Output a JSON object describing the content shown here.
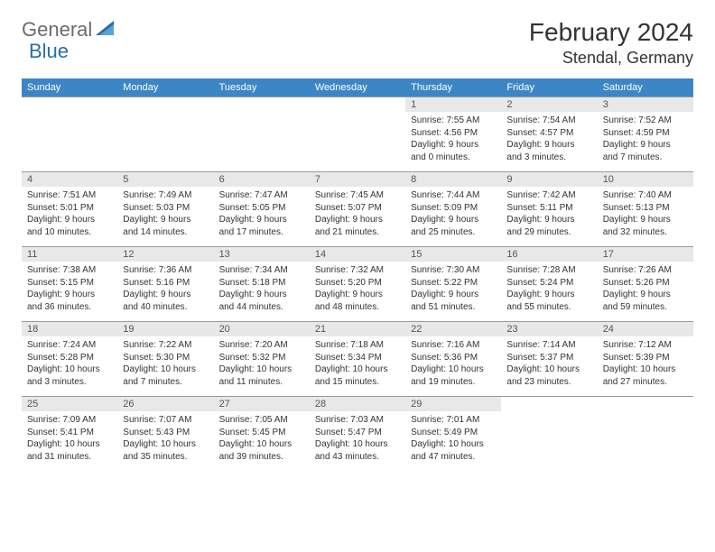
{
  "logo": {
    "text_general": "General",
    "text_blue": "Blue",
    "icon_color": "#2a6ca8"
  },
  "header": {
    "month_title": "February 2024",
    "location": "Stendal, Germany"
  },
  "colors": {
    "header_bg": "#3d86c6",
    "header_fg": "#ffffff",
    "daynum_bg": "#e8e8e8",
    "border": "#9a9a9a"
  },
  "day_names": [
    "Sunday",
    "Monday",
    "Tuesday",
    "Wednesday",
    "Thursday",
    "Friday",
    "Saturday"
  ],
  "weeks": [
    [
      null,
      null,
      null,
      null,
      {
        "n": "1",
        "sunrise": "7:55 AM",
        "sunset": "4:56 PM",
        "day_h": "9",
        "day_m": "0"
      },
      {
        "n": "2",
        "sunrise": "7:54 AM",
        "sunset": "4:57 PM",
        "day_h": "9",
        "day_m": "3"
      },
      {
        "n": "3",
        "sunrise": "7:52 AM",
        "sunset": "4:59 PM",
        "day_h": "9",
        "day_m": "7"
      }
    ],
    [
      {
        "n": "4",
        "sunrise": "7:51 AM",
        "sunset": "5:01 PM",
        "day_h": "9",
        "day_m": "10"
      },
      {
        "n": "5",
        "sunrise": "7:49 AM",
        "sunset": "5:03 PM",
        "day_h": "9",
        "day_m": "14"
      },
      {
        "n": "6",
        "sunrise": "7:47 AM",
        "sunset": "5:05 PM",
        "day_h": "9",
        "day_m": "17"
      },
      {
        "n": "7",
        "sunrise": "7:45 AM",
        "sunset": "5:07 PM",
        "day_h": "9",
        "day_m": "21"
      },
      {
        "n": "8",
        "sunrise": "7:44 AM",
        "sunset": "5:09 PM",
        "day_h": "9",
        "day_m": "25"
      },
      {
        "n": "9",
        "sunrise": "7:42 AM",
        "sunset": "5:11 PM",
        "day_h": "9",
        "day_m": "29"
      },
      {
        "n": "10",
        "sunrise": "7:40 AM",
        "sunset": "5:13 PM",
        "day_h": "9",
        "day_m": "32"
      }
    ],
    [
      {
        "n": "11",
        "sunrise": "7:38 AM",
        "sunset": "5:15 PM",
        "day_h": "9",
        "day_m": "36"
      },
      {
        "n": "12",
        "sunrise": "7:36 AM",
        "sunset": "5:16 PM",
        "day_h": "9",
        "day_m": "40"
      },
      {
        "n": "13",
        "sunrise": "7:34 AM",
        "sunset": "5:18 PM",
        "day_h": "9",
        "day_m": "44"
      },
      {
        "n": "14",
        "sunrise": "7:32 AM",
        "sunset": "5:20 PM",
        "day_h": "9",
        "day_m": "48"
      },
      {
        "n": "15",
        "sunrise": "7:30 AM",
        "sunset": "5:22 PM",
        "day_h": "9",
        "day_m": "51"
      },
      {
        "n": "16",
        "sunrise": "7:28 AM",
        "sunset": "5:24 PM",
        "day_h": "9",
        "day_m": "55"
      },
      {
        "n": "17",
        "sunrise": "7:26 AM",
        "sunset": "5:26 PM",
        "day_h": "9",
        "day_m": "59"
      }
    ],
    [
      {
        "n": "18",
        "sunrise": "7:24 AM",
        "sunset": "5:28 PM",
        "day_h": "10",
        "day_m": "3"
      },
      {
        "n": "19",
        "sunrise": "7:22 AM",
        "sunset": "5:30 PM",
        "day_h": "10",
        "day_m": "7"
      },
      {
        "n": "20",
        "sunrise": "7:20 AM",
        "sunset": "5:32 PM",
        "day_h": "10",
        "day_m": "11"
      },
      {
        "n": "21",
        "sunrise": "7:18 AM",
        "sunset": "5:34 PM",
        "day_h": "10",
        "day_m": "15"
      },
      {
        "n": "22",
        "sunrise": "7:16 AM",
        "sunset": "5:36 PM",
        "day_h": "10",
        "day_m": "19"
      },
      {
        "n": "23",
        "sunrise": "7:14 AM",
        "sunset": "5:37 PM",
        "day_h": "10",
        "day_m": "23"
      },
      {
        "n": "24",
        "sunrise": "7:12 AM",
        "sunset": "5:39 PM",
        "day_h": "10",
        "day_m": "27"
      }
    ],
    [
      {
        "n": "25",
        "sunrise": "7:09 AM",
        "sunset": "5:41 PM",
        "day_h": "10",
        "day_m": "31"
      },
      {
        "n": "26",
        "sunrise": "7:07 AM",
        "sunset": "5:43 PM",
        "day_h": "10",
        "day_m": "35"
      },
      {
        "n": "27",
        "sunrise": "7:05 AM",
        "sunset": "5:45 PM",
        "day_h": "10",
        "day_m": "39"
      },
      {
        "n": "28",
        "sunrise": "7:03 AM",
        "sunset": "5:47 PM",
        "day_h": "10",
        "day_m": "43"
      },
      {
        "n": "29",
        "sunrise": "7:01 AM",
        "sunset": "5:49 PM",
        "day_h": "10",
        "day_m": "47"
      },
      null,
      null
    ]
  ],
  "labels": {
    "sunrise": "Sunrise:",
    "sunset": "Sunset:",
    "daylight": "Daylight:",
    "hours": "hours",
    "and": "and",
    "minutes": "minutes."
  }
}
